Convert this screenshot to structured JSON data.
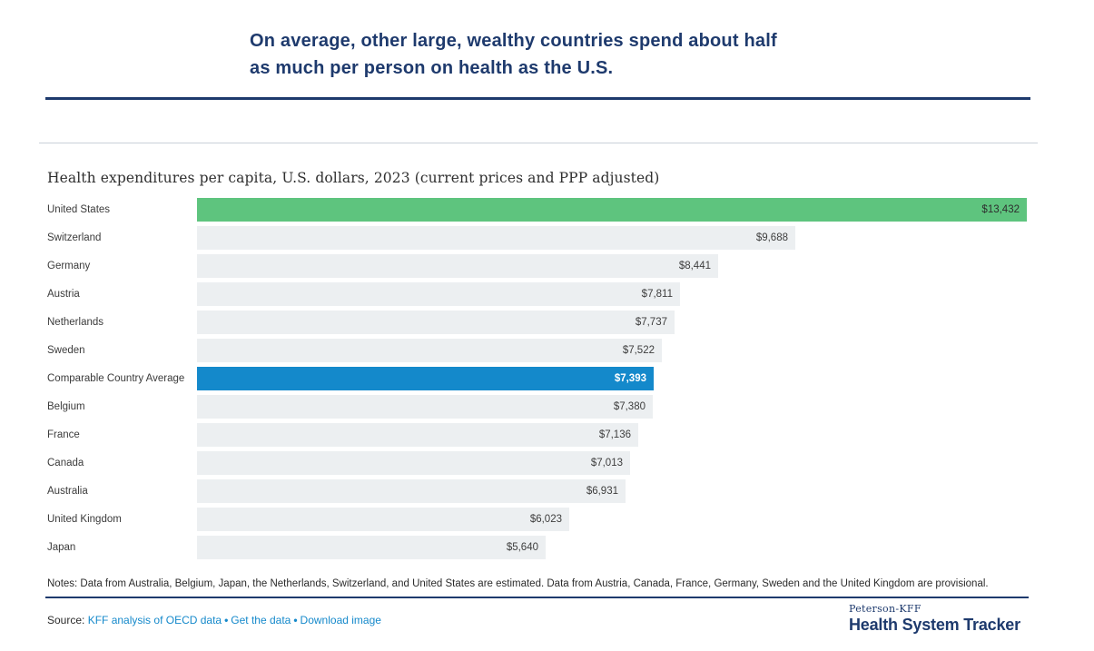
{
  "header": {
    "title_line1": "On average, other large, wealthy countries spend about half",
    "title_line2": "as much per person on health as the U.S."
  },
  "chart_data": {
    "type": "bar",
    "orientation": "horizontal",
    "title": "Health expenditures per capita, U.S. dollars, 2023 (current prices and PPP adjusted)",
    "xlim": [
      0,
      13432
    ],
    "grid": false,
    "legend": false,
    "categories": [
      "United States",
      "Switzerland",
      "Germany",
      "Austria",
      "Netherlands",
      "Sweden",
      "Comparable Country Average",
      "Belgium",
      "France",
      "Canada",
      "Australia",
      "United Kingdom",
      "Japan"
    ],
    "values": [
      13432,
      9688,
      8441,
      7811,
      7737,
      7522,
      7393,
      7380,
      7136,
      7013,
      6931,
      6023,
      5640
    ],
    "value_labels": [
      "$13,432",
      "$9,688",
      "$8,441",
      "$7,811",
      "$7,737",
      "$7,522",
      "$7,393",
      "$7,380",
      "$7,136",
      "$7,013",
      "$6,931",
      "$6,023",
      "$5,640"
    ],
    "variants": [
      "us",
      "default",
      "default",
      "default",
      "default",
      "default",
      "average",
      "default",
      "default",
      "default",
      "default",
      "default",
      "default"
    ]
  },
  "notes": "Notes: Data from Australia, Belgium, Japan, the Netherlands, Switzerland, and United States are estimated. Data from Austria, Canada, France, Germany, Sweden and the United Kingdom are provisional.",
  "source": {
    "label": "Source:",
    "separator": "•",
    "links": [
      {
        "label": "KFF analysis of OECD data"
      },
      {
        "label": "Get the data"
      },
      {
        "label": "Download image"
      }
    ]
  },
  "branding": {
    "top": "Peterson-KFF",
    "bottom": "Health System Tracker"
  },
  "colors": {
    "navy": "#1e3a6d",
    "green": "#5ec47e",
    "blue": "#1489cb",
    "bar_gray": "#eceff1",
    "link_blue": "#1589cb",
    "value_text_default": "#3e3e3e",
    "value_text_on_green": "#2e2e2e",
    "value_text_on_blue": "#ffffff"
  }
}
